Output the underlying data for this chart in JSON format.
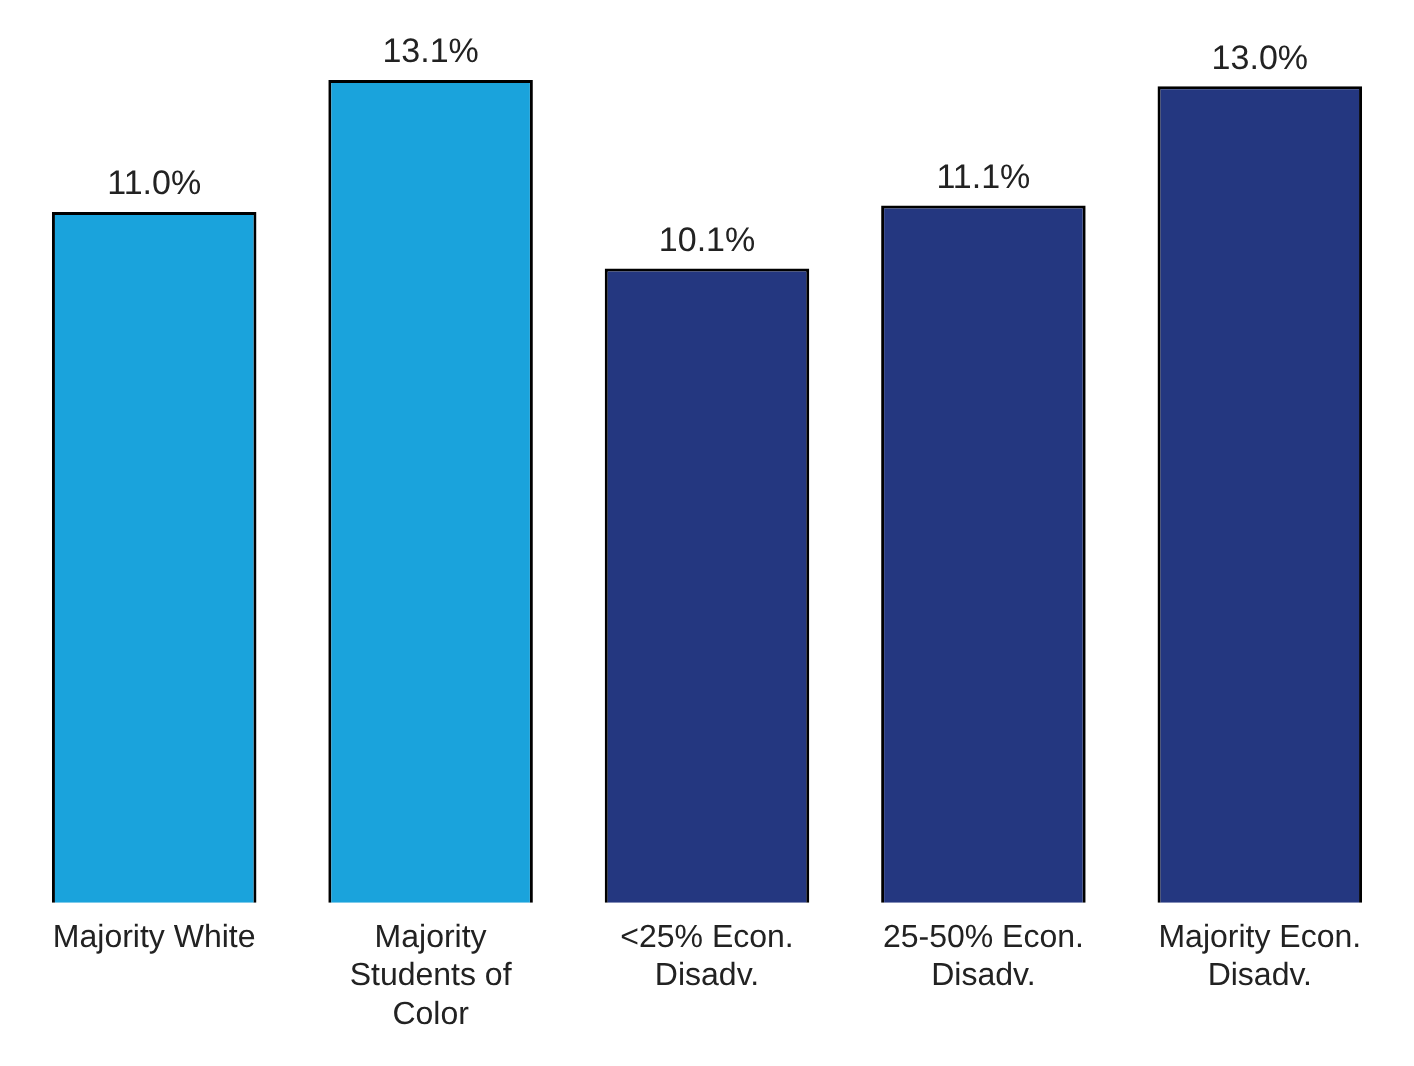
{
  "chart_data": {
    "type": "bar",
    "categories": [
      "Majority White",
      "Majority Students of Color",
      "<25% Econ. Disadv.",
      "25-50% Econ. Disadv.",
      "Majority Econ. Disadv."
    ],
    "values": [
      11.0,
      13.1,
      10.1,
      11.1,
      13.0
    ],
    "colors": [
      "#1aa3dc",
      "#1aa3dc",
      "#243780",
      "#243780",
      "#243780"
    ],
    "value_labels": [
      "11.0%",
      "13.1%",
      "10.1%",
      "11.1%",
      "13.0%"
    ],
    "ylim": [
      0,
      13.1
    ],
    "tick_labels": "x",
    "grid": false,
    "legend": false
  }
}
